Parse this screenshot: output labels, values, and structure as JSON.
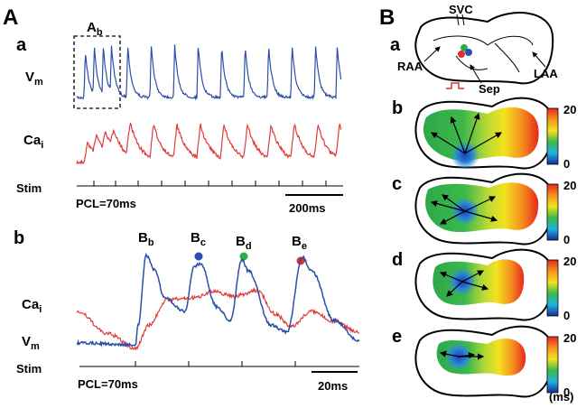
{
  "panel_A": {
    "label": "A",
    "a": {
      "label": "a",
      "inset": {
        "main": "A",
        "sub": "b"
      },
      "vm": {
        "main": "V",
        "sub": "m"
      },
      "ca": {
        "main": "Ca",
        "sub": "i"
      },
      "stim": "Stim",
      "pcl": "PCL=70ms",
      "scale": "200ms"
    },
    "b": {
      "label": "b",
      "peaks": [
        {
          "main": "B",
          "sub": "b"
        },
        {
          "main": "B",
          "sub": "c"
        },
        {
          "main": "B",
          "sub": "d"
        },
        {
          "main": "B",
          "sub": "e"
        }
      ],
      "ca": {
        "main": "Ca",
        "sub": "i"
      },
      "vm": {
        "main": "V",
        "sub": "m"
      },
      "stim": "Stim",
      "pcl": "PCL=70ms",
      "scale": "20ms"
    }
  },
  "panel_B": {
    "label": "B",
    "a": {
      "label": "a",
      "sites": [
        "SVC",
        "RAA",
        "Sep",
        "LAA"
      ]
    },
    "maps": [
      {
        "label": "b",
        "scale_max": 20,
        "scale_min": 0
      },
      {
        "label": "c",
        "scale_max": 20,
        "scale_min": 0
      },
      {
        "label": "d",
        "scale_max": 20,
        "scale_min": 0
      },
      {
        "label": "e",
        "scale_max": 20,
        "scale_min": 0
      }
    ],
    "unit": "(ms)"
  }
}
